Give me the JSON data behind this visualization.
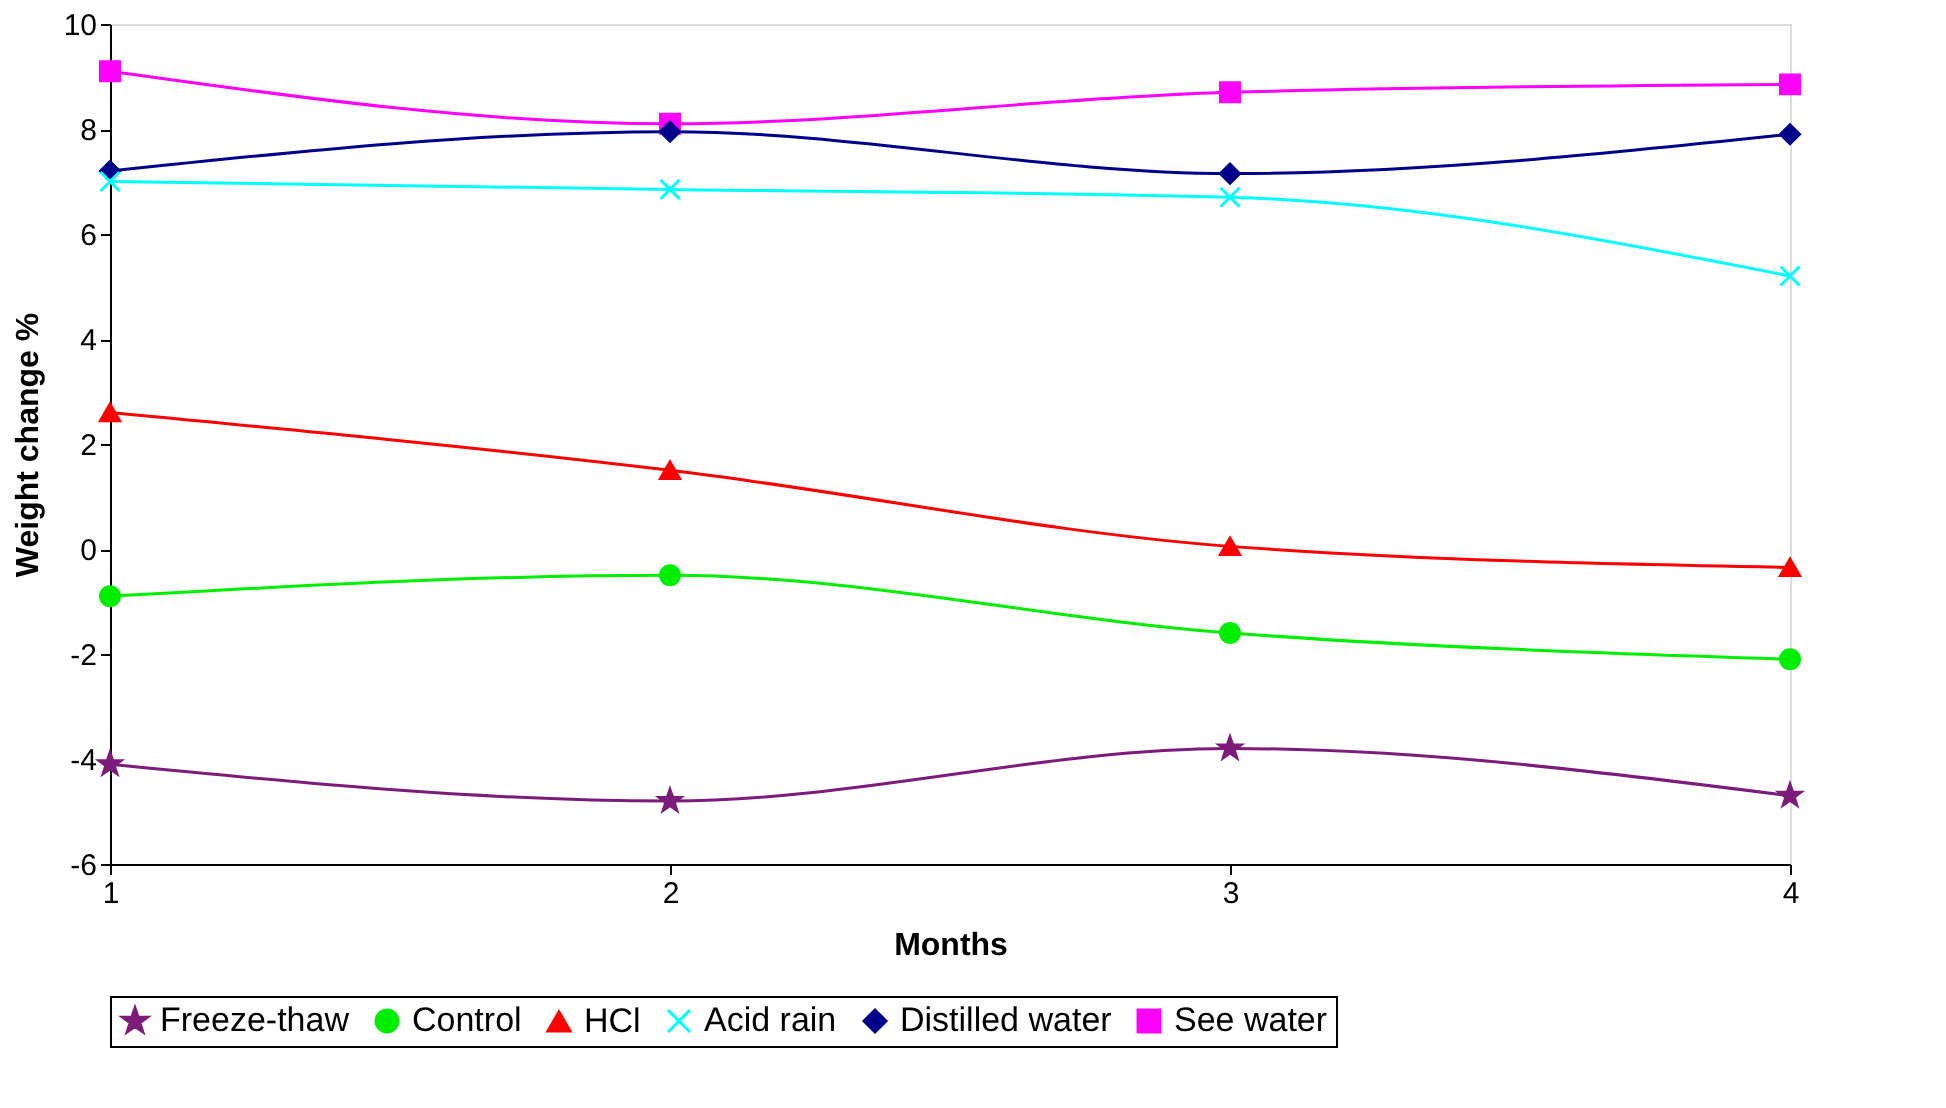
{
  "chart_data": {
    "type": "line",
    "xlabel": "Months",
    "ylabel": "Weight change %",
    "x": [
      1,
      2,
      3,
      4
    ],
    "xlim": [
      1,
      4
    ],
    "xticks": [
      1,
      2,
      3,
      4
    ],
    "ylim": [
      -6,
      10
    ],
    "yticks": [
      -6,
      -4,
      -2,
      0,
      2,
      4,
      6,
      8,
      10
    ],
    "grid": false,
    "legend": "bottom",
    "series": [
      {
        "name": "Freeze-thaw",
        "color": "#7b1c7b",
        "marker": "star",
        "values": [
          -4.1,
          -4.8,
          -3.8,
          -4.7
        ]
      },
      {
        "name": "Control",
        "color": "#00ee00",
        "marker": "circle",
        "values": [
          -0.9,
          -0.5,
          -1.6,
          -2.1
        ]
      },
      {
        "name": "HCl",
        "color": "#ff0000",
        "marker": "triangle",
        "values": [
          2.6,
          1.5,
          0.05,
          -0.35
        ]
      },
      {
        "name": "Acid rain",
        "color": "#00ffff",
        "marker": "cross",
        "values": [
          7.0,
          6.85,
          6.7,
          5.2
        ]
      },
      {
        "name": "Distilled water",
        "color": "#00008b",
        "marker": "diamond",
        "values": [
          7.2,
          7.95,
          7.15,
          7.9
        ]
      },
      {
        "name": "See water",
        "color": "#ff00ff",
        "marker": "square",
        "values": [
          9.1,
          8.1,
          8.7,
          8.85
        ]
      }
    ]
  }
}
